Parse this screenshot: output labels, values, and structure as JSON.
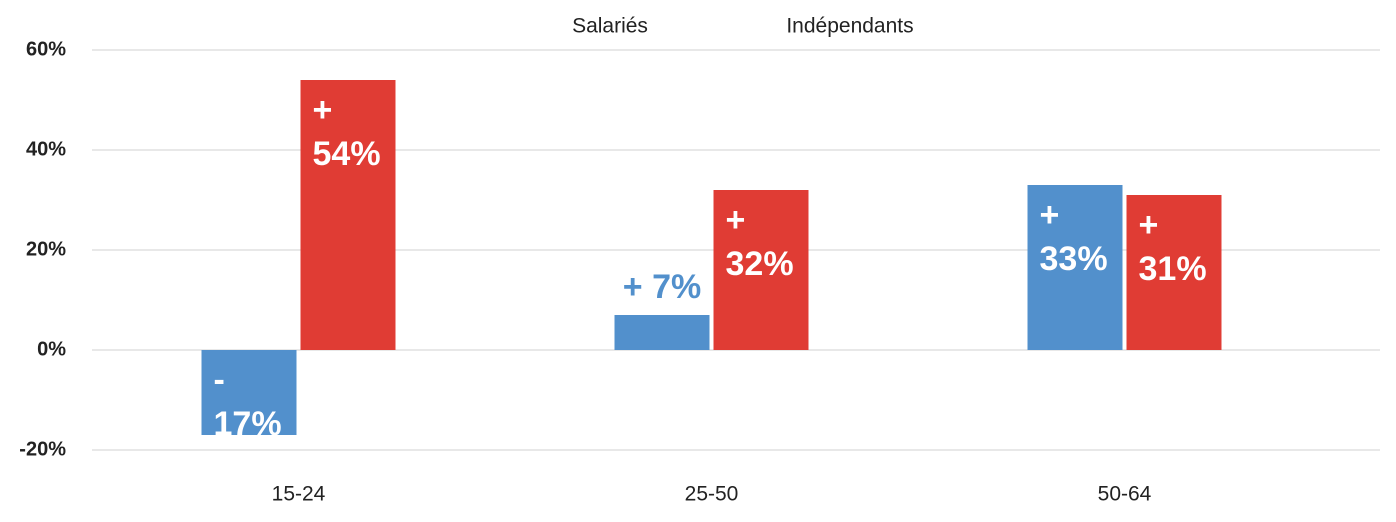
{
  "chart_data": {
    "type": "bar",
    "categories": [
      "15-24",
      "25-50",
      "50-64"
    ],
    "series": [
      {
        "name": "Salariés",
        "color": "#5290cc",
        "values": [
          -17,
          7,
          33
        ],
        "value_labels": [
          "- 17%",
          "+ 7%",
          "+ 33%"
        ]
      },
      {
        "name": "Indépendants",
        "color": "#e03c34",
        "values": [
          54,
          32,
          31
        ],
        "value_labels": [
          "+ 54%",
          "+ 32%",
          "+ 31%"
        ]
      }
    ],
    "ylim": [
      -20,
      60
    ],
    "yticks": [
      {
        "value": -20,
        "label": "-20%"
      },
      {
        "value": 0,
        "label": "0%"
      },
      {
        "value": 20,
        "label": "20%"
      },
      {
        "value": 40,
        "label": "40%"
      },
      {
        "value": 60,
        "label": "60%"
      }
    ],
    "grid": true,
    "legend": "top"
  }
}
